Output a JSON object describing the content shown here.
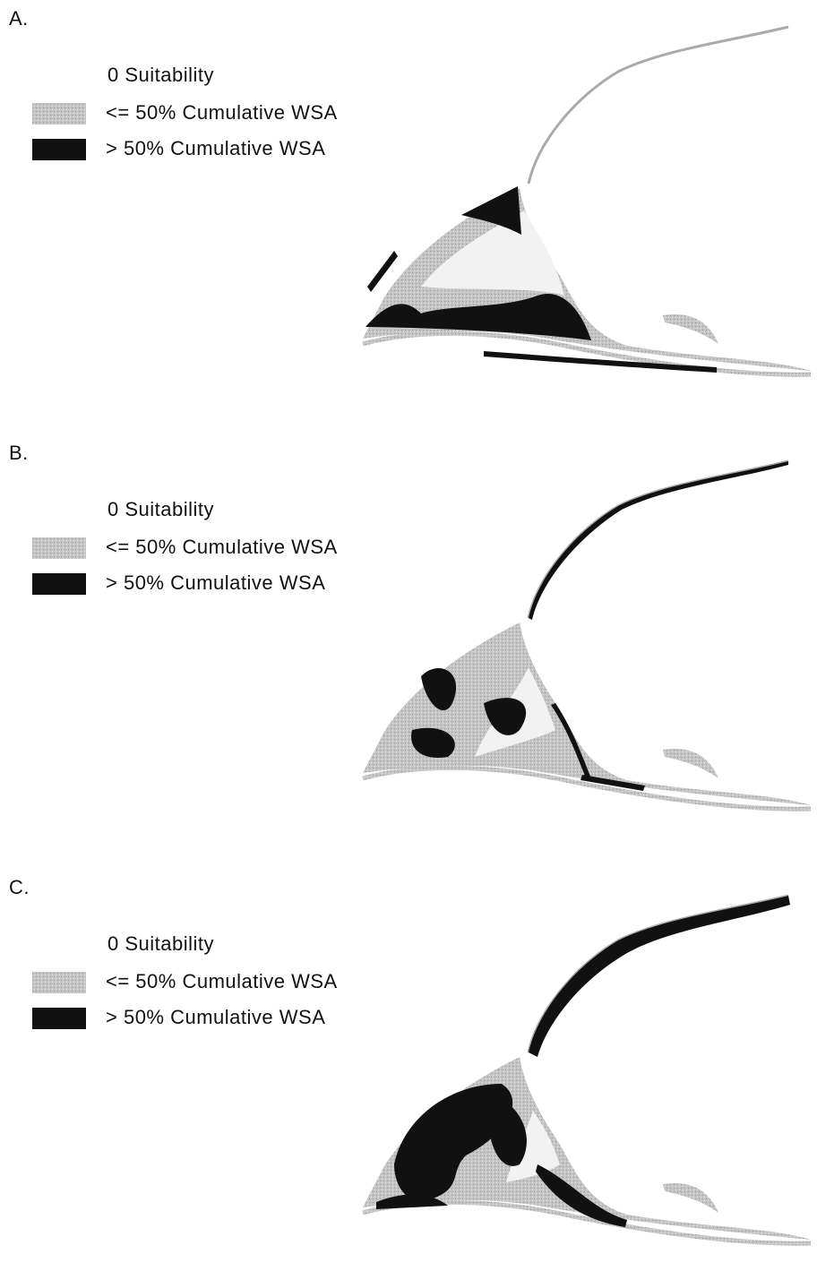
{
  "panels": [
    {
      "label": "A.",
      "legend": [
        "0 Suitability",
        "<= 50% Cumulative WSA",
        "> 50% Cumulative WSA"
      ]
    },
    {
      "label": "B.",
      "legend": [
        "0 Suitability",
        "<= 50% Cumulative WSA",
        "> 50% Cumulative WSA"
      ]
    },
    {
      "label": "C.",
      "legend": [
        "0 Suitability",
        "<= 50% Cumulative WSA",
        "> 50% Cumulative WSA"
      ]
    }
  ]
}
